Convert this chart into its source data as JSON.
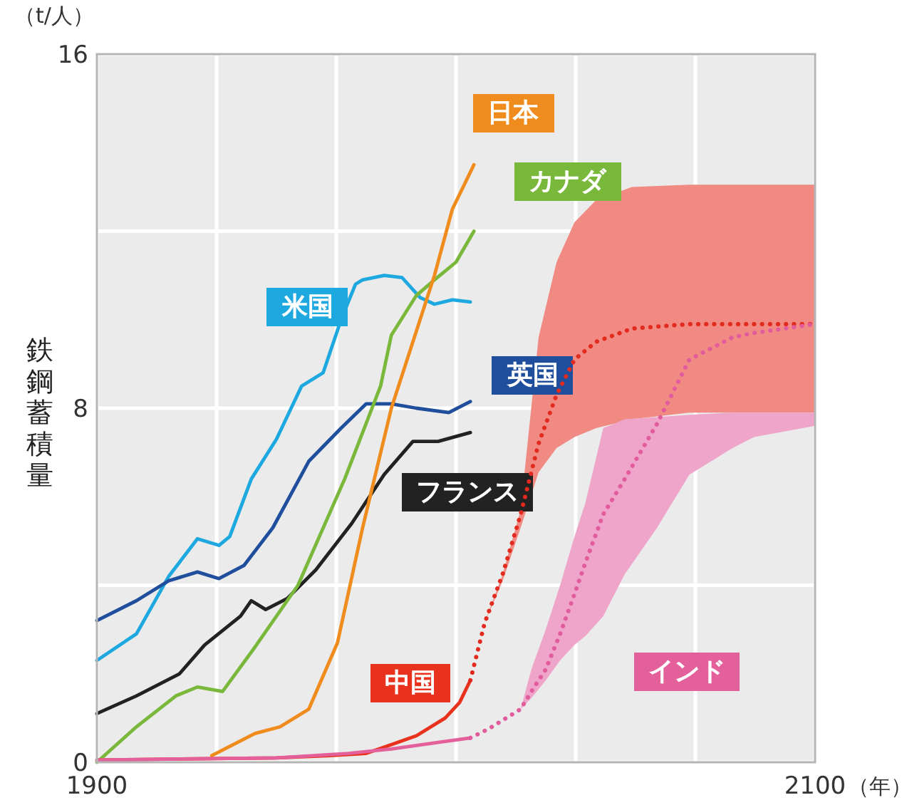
{
  "chart_data": {
    "type": "line",
    "ylabel": "鉄鋼蓄積量",
    "xlabel": "（年）",
    "annotations": [
      "（t/人）"
    ],
    "xlim": [
      1900,
      2100
    ],
    "ylim": [
      0,
      16
    ],
    "xticks": [
      1900,
      {
        "value": 1933.33,
        "label": null
      },
      {
        "value": 1966.67,
        "label": null
      },
      {
        "value": 2000,
        "label": null
      },
      {
        "value": 2033.33,
        "label": null
      },
      {
        "value": 2066.67,
        "label": null
      },
      2100
    ],
    "yticks": [
      0,
      {
        "value": 4,
        "label": null
      },
      8,
      {
        "value": 12,
        "label": null
      },
      16
    ],
    "grid": true,
    "marker": "none",
    "series": [
      {
        "name": "米国",
        "color": "#1ea8e0",
        "line_style": "solid",
        "x": [
          1900,
          1911,
          1920,
          1928,
          1934,
          1937,
          1943,
          1950,
          1957,
          1963,
          1968,
          1972,
          1974,
          1980,
          1985,
          1990,
          1994,
          1999,
          2004
        ],
        "values": [
          2.3,
          2.9,
          4.2,
          5.05,
          4.9,
          5.1,
          6.4,
          7.3,
          8.5,
          8.8,
          10.0,
          10.8,
          10.9,
          11.0,
          10.95,
          10.5,
          10.35,
          10.45,
          10.4
        ]
      },
      {
        "name": "英国",
        "color": "#1f4e9c",
        "line_style": "solid",
        "x": [
          1900,
          1911,
          1920,
          1928,
          1934,
          1941,
          1949,
          1959,
          1968,
          1975,
          1982,
          1989,
          1998,
          2004
        ],
        "values": [
          3.2,
          3.65,
          4.1,
          4.3,
          4.15,
          4.45,
          5.3,
          6.8,
          7.55,
          8.1,
          8.1,
          8.0,
          7.9,
          8.15
        ]
      },
      {
        "name": "フランス",
        "color": "#222222",
        "line_style": "solid",
        "x": [
          1900,
          1911,
          1923,
          1930,
          1940,
          1943,
          1947,
          1953,
          1961,
          1971,
          1980,
          1988,
          1995,
          2004
        ],
        "values": [
          1.1,
          1.5,
          2.0,
          2.65,
          3.3,
          3.65,
          3.45,
          3.7,
          4.35,
          5.4,
          6.5,
          7.25,
          7.25,
          7.45
        ]
      },
      {
        "name": "カナダ",
        "color": "#7ab83c",
        "line_style": "solid",
        "x": [
          1900,
          1911,
          1922,
          1928,
          1935,
          1944,
          1956,
          1969,
          1979,
          1982,
          1989,
          1994,
          2000,
          2005
        ],
        "values": [
          0,
          0.8,
          1.5,
          1.7,
          1.6,
          2.6,
          4.0,
          6.4,
          8.5,
          9.65,
          10.55,
          10.9,
          11.3,
          12.0
        ]
      },
      {
        "name": "日本",
        "color": "#f08c1e",
        "line_style": "solid",
        "x": [
          1932,
          1944,
          1951,
          1959,
          1967,
          1974,
          1982,
          1994,
          1999,
          2005
        ],
        "values": [
          0.15,
          0.65,
          0.8,
          1.2,
          2.7,
          5.3,
          8.0,
          11.0,
          12.5,
          13.5
        ]
      },
      {
        "name": "中国",
        "color": "#e8321e",
        "line_style": "solid",
        "x": [
          1900,
          1950,
          1965,
          1975,
          1982,
          1989,
          1997,
          2001,
          2004
        ],
        "values": [
          0.05,
          0.1,
          0.15,
          0.2,
          0.4,
          0.6,
          1.0,
          1.35,
          1.85
        ]
      },
      {
        "color": "#e32a1e",
        "line_style": "dotted",
        "x": [
          2004,
          2008,
          2013,
          2018,
          2023,
          2028,
          2033,
          2039,
          2049,
          2065,
          2100
        ],
        "values": [
          1.85,
          3.15,
          4.25,
          5.6,
          7.2,
          8.3,
          9.1,
          9.5,
          9.8,
          9.9,
          9.9
        ],
        "lower": [
          1.85,
          3.15,
          4.1,
          5.3,
          6.55,
          7.1,
          7.35,
          7.55,
          7.75,
          7.9,
          7.9
        ],
        "upper": [
          1.85,
          3.15,
          4.25,
          5.7,
          9.6,
          11.3,
          12.2,
          12.7,
          13.0,
          13.05,
          13.05
        ]
      },
      {
        "name": "インド",
        "color": "#e4609a",
        "line_style": "solid",
        "x": [
          1900,
          1950,
          1970,
          1982,
          1995,
          2004
        ],
        "values": [
          0.05,
          0.1,
          0.2,
          0.3,
          0.45,
          0.55
        ]
      },
      {
        "color": "#e25b9c",
        "line_style": "dotted",
        "x": [
          2004,
          2009,
          2018,
          2021,
          2025,
          2029,
          2033,
          2036,
          2041,
          2047,
          2056,
          2065,
          2077,
          2083,
          2100
        ],
        "values": [
          0.55,
          0.75,
          1.2,
          1.6,
          2.1,
          2.9,
          3.8,
          4.5,
          5.6,
          6.4,
          7.65,
          9.1,
          9.6,
          9.7,
          9.9
        ],
        "lower": [
          0.55,
          0.75,
          1.2,
          1.45,
          1.85,
          2.3,
          2.65,
          2.85,
          3.3,
          4.25,
          5.3,
          6.5,
          7.1,
          7.35,
          7.6
        ],
        "upper": [
          0.55,
          0.75,
          1.2,
          2.1,
          3.0,
          4.0,
          5.1,
          5.85,
          7.55,
          7.75,
          7.8,
          7.85,
          7.9,
          7.9,
          7.9
        ]
      }
    ]
  }
}
